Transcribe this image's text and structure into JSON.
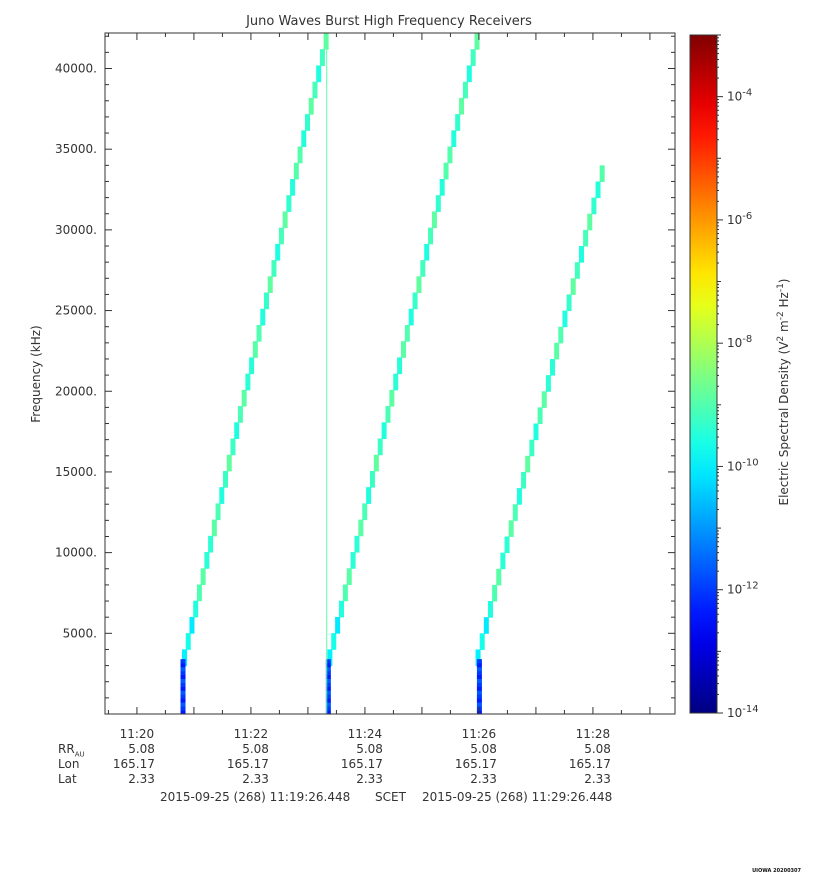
{
  "chart_data": {
    "type": "heatmap",
    "title": "Juno Waves Burst High Frequency Receivers",
    "ylabel": "Frequency (kHz)",
    "ylim": [
      0,
      42200
    ],
    "y_ticks": [
      5000,
      10000,
      15000,
      20000,
      25000,
      30000,
      35000,
      40000
    ],
    "y_tick_labels": [
      "5000.",
      "10000.",
      "15000.",
      "20000.",
      "25000.",
      "30000.",
      "35000.",
      "40000."
    ],
    "x_tick_labels": [
      "11:20",
      "11:22",
      "11:24",
      "11:26",
      "11:28"
    ],
    "x_ticks_min": [
      20,
      22,
      24,
      26,
      28
    ],
    "xlim_min": [
      19.44,
      29.44
    ],
    "colorbar": {
      "label": "Electric Spectral Density (V2 m-2 Hz-1)",
      "log_range": [
        -14,
        -3
      ],
      "tick_exponents": [
        -14,
        -12,
        -10,
        -8,
        -6,
        -4
      ],
      "tick_labels": [
        "10-14",
        "10-12",
        "10-10",
        "10-8",
        "10-6",
        "10-4"
      ]
    },
    "sweeps": [
      {
        "t_start": 20.8,
        "t_end": 23.35,
        "f_start": 3000,
        "f_end": 42200
      },
      {
        "t_start": 23.35,
        "t_end": 26.0,
        "f_start": 3000,
        "f_end": 42200
      },
      {
        "t_start": 25.95,
        "t_end": 28.2,
        "f_start": 3000,
        "f_end": 34000
      }
    ],
    "low_freq_bursts": [
      {
        "t": 20.8,
        "f_range": [
          0,
          3400
        ],
        "log_density": -12
      },
      {
        "t": 23.35,
        "f_range": [
          0,
          3400
        ],
        "log_density": -12
      },
      {
        "t": 26.0,
        "f_range": [
          0,
          3400
        ],
        "log_density": -12
      }
    ],
    "vertical_line": {
      "t": 23.33,
      "log_density": -8.9
    },
    "grid": false,
    "legend": "colorbar at right"
  },
  "ephemeris": {
    "rows": [
      {
        "label": "R",
        "sub": "AU",
        "values": [
          "5.08",
          "5.08",
          "5.08",
          "5.08",
          "5.08"
        ]
      },
      {
        "label": "Lon",
        "values": [
          "165.17",
          "165.17",
          "165.17",
          "165.17",
          "165.17"
        ]
      },
      {
        "label": "Lat",
        "values": [
          "2.33",
          "2.33",
          "2.33",
          "2.33",
          "2.33"
        ]
      }
    ]
  },
  "footer": {
    "start": "2015-09-25 (268) 11:19:26.448",
    "mid": "SCET",
    "end": "2015-09-25 (268) 11:29:26.448"
  },
  "stamp": "UIOWA 20200307"
}
